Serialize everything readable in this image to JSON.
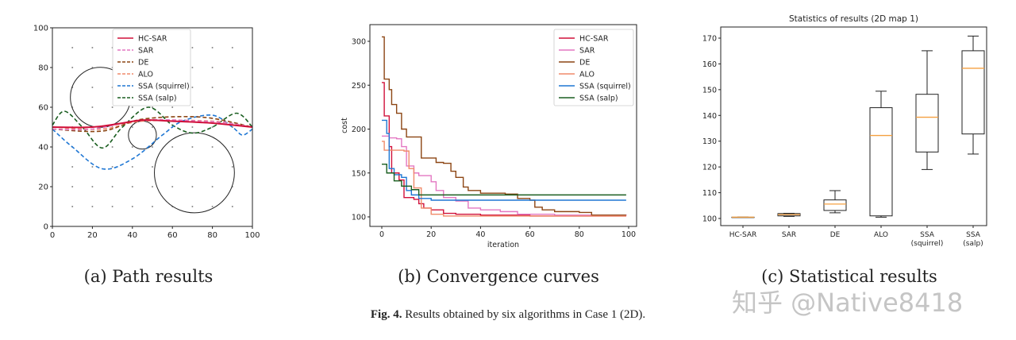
{
  "captions": {
    "a": "(a) Path results",
    "b": "(b) Convergence curves",
    "c": "(c) Statistical results",
    "fig_label": "Fig. 4.",
    "fig_text": "Results obtained by six algorithms in Case 1 (2D)."
  },
  "watermark": "知乎 @Native8418",
  "colors": {
    "HC-SAR": "#d0103a",
    "SAR": "#e377c2",
    "DE": "#8c4513",
    "ALO": "#f08a6a",
    "SSA (squirrel)": "#1f77d4",
    "SSA (salp)": "#1a5e20"
  },
  "chart_data": [
    {
      "type": "line",
      "title": "",
      "xlabel": "",
      "ylabel": "",
      "xlim": [
        0,
        100
      ],
      "ylim": [
        0,
        100
      ],
      "xticks": [
        "0",
        "20",
        "40",
        "60",
        "80",
        "100"
      ],
      "yticks": [
        "0",
        "20",
        "40",
        "60",
        "80",
        "100"
      ],
      "legend": "top-center",
      "obstacles": [
        {
          "cx": 24,
          "cy": 65,
          "r": 15
        },
        {
          "cx": 45,
          "cy": 46,
          "r": 7
        },
        {
          "cx": 71,
          "cy": 27,
          "r": 20
        }
      ],
      "series": [
        {
          "name": "HC-SAR",
          "style": "solid",
          "points": [
            [
              0,
              50
            ],
            [
              20,
              50
            ],
            [
              35,
              52
            ],
            [
              45,
              53.5
            ],
            [
              60,
              53
            ],
            [
              80,
              52
            ],
            [
              100,
              50
            ]
          ]
        },
        {
          "name": "SAR",
          "style": "dashed",
          "points": [
            [
              0,
              49
            ],
            [
              20,
              49
            ],
            [
              45,
              53.5
            ],
            [
              75,
              53
            ],
            [
              88,
              52
            ],
            [
              100,
              50
            ]
          ]
        },
        {
          "name": "DE",
          "style": "dashed",
          "points": [
            [
              0,
              49
            ],
            [
              25,
              48
            ],
            [
              45,
              54
            ],
            [
              75,
              55
            ],
            [
              100,
              50
            ]
          ]
        },
        {
          "name": "ALO",
          "style": "dashed",
          "points": [
            [
              0,
              50
            ],
            [
              25,
              49
            ],
            [
              45,
              53
            ],
            [
              80,
              53
            ],
            [
              100,
              50
            ]
          ]
        },
        {
          "name": "SSA (squirrel)",
          "style": "dashed",
          "points": [
            [
              0,
              49
            ],
            [
              10,
              40
            ],
            [
              25,
              29
            ],
            [
              40,
              34
            ],
            [
              55,
              46
            ],
            [
              65,
              53
            ],
            [
              80,
              56
            ],
            [
              90,
              50
            ],
            [
              95,
              46
            ],
            [
              100,
              49
            ]
          ]
        },
        {
          "name": "SSA (salp)",
          "style": "dashed",
          "points": [
            [
              0,
              51
            ],
            [
              6,
              58
            ],
            [
              15,
              50
            ],
            [
              25,
              39.5
            ],
            [
              35,
              50
            ],
            [
              48,
              60
            ],
            [
              60,
              51
            ],
            [
              70,
              47
            ],
            [
              80,
              50
            ],
            [
              92,
              57
            ],
            [
              100,
              50
            ]
          ]
        }
      ]
    },
    {
      "type": "line",
      "title": "",
      "xlabel": "iteration",
      "ylabel": "cost",
      "xlim": [
        -4,
        103
      ],
      "ylim": [
        90,
        315
      ],
      "xticks": [
        "0",
        "20",
        "40",
        "60",
        "80",
        "100"
      ],
      "yticks": [
        "100",
        "150",
        "200",
        "250",
        "300"
      ],
      "legend": "top-right",
      "series": [
        {
          "name": "HC-SAR",
          "points": [
            [
              0,
              253
            ],
            [
              1,
              215
            ],
            [
              3,
              180
            ],
            [
              4,
              150
            ],
            [
              7,
              142
            ],
            [
              9,
              122
            ],
            [
              13,
              120
            ],
            [
              15,
              115
            ],
            [
              17,
              110
            ],
            [
              20,
              108
            ],
            [
              25,
              104
            ],
            [
              30,
              103
            ],
            [
              40,
              102
            ],
            [
              60,
              101
            ],
            [
              99,
              101
            ]
          ]
        },
        {
          "name": "SAR",
          "points": [
            [
              0,
              192
            ],
            [
              3,
              190
            ],
            [
              6,
              189
            ],
            [
              8,
              180
            ],
            [
              10,
              158
            ],
            [
              13,
              150
            ],
            [
              15,
              147
            ],
            [
              20,
              140
            ],
            [
              22,
              130
            ],
            [
              25,
              122
            ],
            [
              30,
              118
            ],
            [
              35,
              110
            ],
            [
              40,
              108
            ],
            [
              48,
              106
            ],
            [
              55,
              103
            ],
            [
              70,
              102
            ],
            [
              99,
              101.5
            ]
          ]
        },
        {
          "name": "DE",
          "points": [
            [
              0,
              305
            ],
            [
              1,
              257
            ],
            [
              3,
              245
            ],
            [
              4,
              228
            ],
            [
              6,
              218
            ],
            [
              8,
              200
            ],
            [
              10,
              191
            ],
            [
              14,
              191
            ],
            [
              16,
              167
            ],
            [
              20,
              167
            ],
            [
              22,
              162
            ],
            [
              25,
              161
            ],
            [
              28,
              152
            ],
            [
              30,
              145
            ],
            [
              33,
              134
            ],
            [
              35,
              130
            ],
            [
              40,
              127
            ],
            [
              50,
              126
            ],
            [
              55,
              121
            ],
            [
              60,
              119
            ],
            [
              62,
              111
            ],
            [
              65,
              108
            ],
            [
              70,
              106
            ],
            [
              80,
              105
            ],
            [
              85,
              102
            ],
            [
              99,
              102
            ]
          ]
        },
        {
          "name": "ALO",
          "points": [
            [
              0,
              186
            ],
            [
              1,
              176
            ],
            [
              9,
              175
            ],
            [
              11,
              155
            ],
            [
              13,
              133
            ],
            [
              16,
              110
            ],
            [
              20,
              103
            ],
            [
              25,
              101
            ],
            [
              99,
              101
            ]
          ]
        },
        {
          "name": "SSA (squirrel)",
          "points": [
            [
              0,
              210
            ],
            [
              2,
              195
            ],
            [
              3,
              155
            ],
            [
              5,
              148
            ],
            [
              8,
              145
            ],
            [
              10,
              130
            ],
            [
              12,
              125
            ],
            [
              15,
              121
            ],
            [
              20,
              119
            ],
            [
              99,
              119
            ]
          ]
        },
        {
          "name": "SSA (salp)",
          "points": [
            [
              0,
              160
            ],
            [
              2,
              150
            ],
            [
              5,
              141
            ],
            [
              8,
              135
            ],
            [
              12,
              131
            ],
            [
              15,
              125
            ],
            [
              99,
              125
            ]
          ]
        }
      ]
    },
    {
      "type": "box",
      "title": "Statistics of results (2D map 1)",
      "xlabel": "",
      "ylabel": "",
      "ylim": [
        97,
        173
      ],
      "yticks": [
        "100",
        "110",
        "120",
        "130",
        "140",
        "150",
        "160",
        "170"
      ],
      "categories": [
        [
          "HC-SAR"
        ],
        [
          "SAR"
        ],
        [
          "DE"
        ],
        [
          "ALO"
        ],
        [
          "SSA",
          "(squirrel)"
        ],
        [
          "SSA",
          "(salp)"
        ]
      ],
      "boxes": [
        {
          "min": 100.5,
          "q1": 100.5,
          "median": 100.5,
          "q3": 100.5,
          "max": 100.5
        },
        {
          "min": 100.8,
          "q1": 101,
          "median": 101.5,
          "q3": 101.9,
          "max": 102
        },
        {
          "min": 102.2,
          "q1": 103.1,
          "median": 105.6,
          "q3": 107.2,
          "max": 110.8
        },
        {
          "min": 100.5,
          "q1": 101,
          "median": 132.2,
          "q3": 143,
          "max": 149.4
        },
        {
          "min": 119,
          "q1": 125.8,
          "median": 139.3,
          "q3": 148.2,
          "max": 165.1
        },
        {
          "min": 125,
          "q1": 132.8,
          "median": 158.3,
          "q3": 165.1,
          "max": 170.8
        }
      ]
    }
  ]
}
